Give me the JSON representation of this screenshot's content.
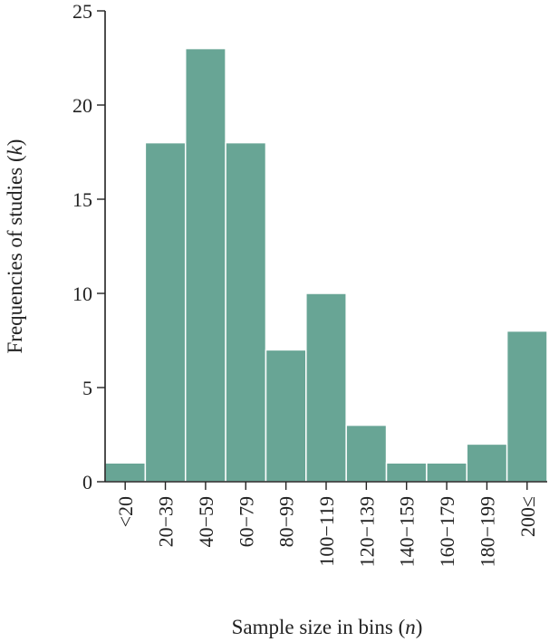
{
  "chart_data": {
    "type": "bar",
    "title": "",
    "xlabel": "Sample size in bins (",
    "xlabel_var": "n",
    "xlabel_end": ")",
    "ylabel": "Frequencies of studies (",
    "ylabel_var": "k",
    "ylabel_end": ")",
    "categories": [
      "<20",
      "20−39",
      "40−59",
      "60−79",
      "80−99",
      "100−119",
      "120−139",
      "140−159",
      "160−179",
      "180−199",
      "200≤"
    ],
    "values": [
      1,
      18,
      23,
      18,
      7,
      10,
      3,
      1,
      1,
      2,
      8
    ],
    "ylim": [
      0,
      25
    ],
    "yticks": [
      0,
      5,
      10,
      15,
      20,
      25
    ],
    "grid": false,
    "legend": "none",
    "bar_color": "#68a595"
  }
}
